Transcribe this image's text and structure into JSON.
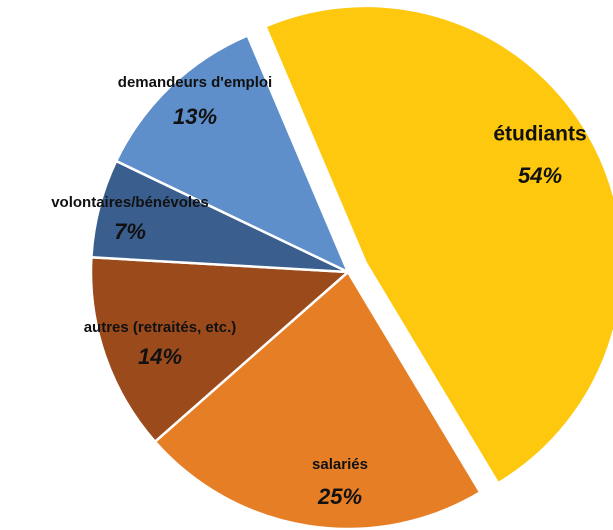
{
  "chart_data": {
    "type": "pie",
    "categories": [
      "étudiants",
      "salariés",
      "autres (retraités, etc.)",
      "volontaires/bénévoles",
      "demandeurs d'emploi"
    ],
    "values": [
      54,
      25,
      14,
      7,
      13
    ],
    "value_labels": [
      "54%",
      "25%",
      "14%",
      "7%",
      "13%"
    ],
    "colors": [
      "#FDC80E",
      "#E67E26",
      "#9B4A1C",
      "#3A5F8E",
      "#5E8FCB"
    ],
    "exploded": [
      true,
      false,
      false,
      false,
      false
    ]
  }
}
